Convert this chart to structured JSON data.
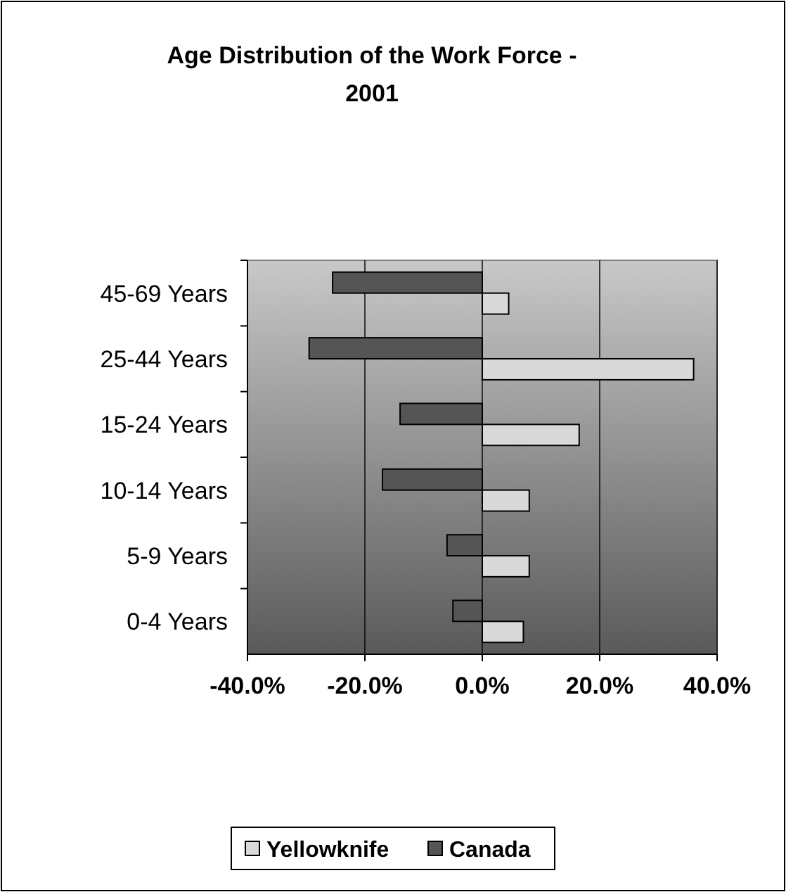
{
  "chart_data": {
    "type": "bar",
    "orientation": "horizontal",
    "title": "Age Distribution of the Work Force -\n2001",
    "categories": [
      "45-69 Years",
      "25-44 Years",
      "15-24 Years",
      "10-14 Years",
      "5-9 Years",
      "0-4 Years"
    ],
    "series": [
      {
        "name": "Yellowknife",
        "color": "#d9d9d9",
        "values": [
          4.5,
          36,
          16.5,
          8,
          8,
          7
        ]
      },
      {
        "name": "Canada",
        "color": "#555555",
        "values": [
          -25.5,
          -29.5,
          -14,
          -17,
          -6,
          -5
        ]
      }
    ],
    "xlim": [
      -40,
      40
    ],
    "xticks": [
      {
        "value": -40,
        "label": "-40.0%"
      },
      {
        "value": -20,
        "label": "-20.0%"
      },
      {
        "value": 0,
        "label": "0.0%"
      },
      {
        "value": 20,
        "label": "20.0%"
      },
      {
        "value": 40,
        "label": "40.0%"
      }
    ],
    "grid": "x",
    "legend": "bottom"
  }
}
